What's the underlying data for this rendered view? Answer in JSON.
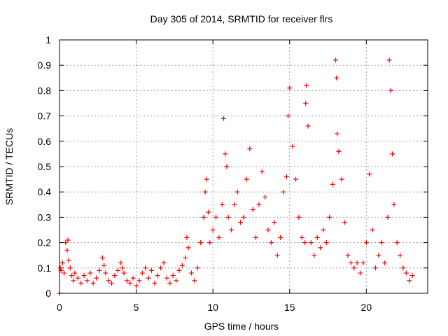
{
  "chart_data": {
    "type": "scatter",
    "title": "Day 305 of 2014, SRMTID for receiver flrs",
    "xlabel": "GPS time / hours",
    "ylabel": "SRMTID / TECUs",
    "xlim": [
      0,
      24
    ],
    "ylim": [
      0,
      1
    ],
    "xticks": [
      0,
      5,
      10,
      15,
      20
    ],
    "xtick_labels": [
      "0",
      "5",
      "10",
      "15",
      "20"
    ],
    "yticks": [
      0,
      0.1,
      0.2,
      0.3,
      0.4,
      0.5,
      0.6,
      0.7,
      0.8,
      0.9,
      1
    ],
    "ytick_labels": [
      "0",
      "0.1",
      "0.2",
      "0.3",
      "0.4",
      "0.5",
      "0.6",
      "0.7",
      "0.8",
      "0.9",
      "1"
    ],
    "grid": true,
    "marker": "+",
    "marker_color": "#ff0000",
    "series": [
      {
        "name": "flrs",
        "x": [
          0.0,
          0.05,
          0.1,
          0.2,
          0.3,
          0.4,
          0.5,
          0.55,
          0.6,
          0.7,
          0.8,
          0.9,
          1.0,
          1.2,
          1.4,
          1.6,
          1.8,
          2.0,
          2.2,
          2.4,
          2.6,
          2.8,
          2.9,
          3.0,
          3.2,
          3.4,
          3.6,
          3.8,
          4.0,
          4.1,
          4.2,
          4.4,
          4.6,
          4.8,
          5.0,
          5.2,
          5.4,
          5.6,
          5.8,
          6.0,
          6.2,
          6.4,
          6.6,
          6.8,
          7.0,
          7.2,
          7.4,
          7.6,
          7.8,
          8.0,
          8.2,
          8.3,
          8.4,
          8.6,
          8.8,
          9.0,
          9.2,
          9.4,
          9.5,
          9.6,
          9.7,
          9.8,
          10.0,
          10.2,
          10.4,
          10.6,
          10.7,
          10.8,
          10.9,
          11.0,
          11.2,
          11.4,
          11.6,
          11.8,
          12.0,
          12.2,
          12.4,
          12.6,
          12.8,
          13.0,
          13.2,
          13.4,
          13.6,
          13.8,
          14.0,
          14.2,
          14.4,
          14.6,
          14.8,
          14.9,
          15.0,
          15.2,
          15.4,
          15.6,
          15.8,
          16.0,
          16.05,
          16.1,
          16.2,
          16.4,
          16.6,
          16.8,
          17.0,
          17.2,
          17.4,
          17.6,
          17.8,
          18.0,
          18.05,
          18.1,
          18.2,
          18.4,
          18.6,
          18.8,
          19.0,
          19.2,
          19.4,
          19.6,
          19.8,
          20.0,
          20.2,
          20.4,
          20.6,
          20.8,
          21.0,
          21.2,
          21.4,
          21.5,
          21.6,
          21.7,
          21.8,
          22.0,
          22.2,
          22.4,
          22.6,
          22.8,
          23.0
        ],
        "y": [
          0.0,
          0.1,
          0.09,
          0.12,
          0.08,
          0.2,
          0.17,
          0.21,
          0.13,
          0.1,
          0.07,
          0.05,
          0.08,
          0.06,
          0.04,
          0.07,
          0.05,
          0.08,
          0.04,
          0.06,
          0.09,
          0.14,
          0.11,
          0.08,
          0.05,
          0.04,
          0.07,
          0.09,
          0.12,
          0.1,
          0.08,
          0.05,
          0.04,
          0.06,
          0.03,
          0.05,
          0.08,
          0.1,
          0.06,
          0.09,
          0.04,
          0.07,
          0.1,
          0.12,
          0.06,
          0.04,
          0.07,
          0.05,
          0.09,
          0.11,
          0.14,
          0.22,
          0.18,
          0.08,
          0.05,
          0.1,
          0.2,
          0.3,
          0.4,
          0.45,
          0.32,
          0.2,
          0.25,
          0.3,
          0.22,
          0.35,
          0.69,
          0.55,
          0.5,
          0.3,
          0.25,
          0.35,
          0.4,
          0.28,
          0.3,
          0.45,
          0.57,
          0.33,
          0.22,
          0.35,
          0.48,
          0.38,
          0.25,
          0.2,
          0.28,
          0.15,
          0.22,
          0.4,
          0.46,
          0.7,
          0.81,
          0.58,
          0.45,
          0.3,
          0.22,
          0.2,
          0.75,
          0.82,
          0.66,
          0.2,
          0.15,
          0.22,
          0.18,
          0.25,
          0.2,
          0.3,
          0.43,
          0.92,
          0.85,
          0.63,
          0.56,
          0.45,
          0.28,
          0.15,
          0.12,
          0.1,
          0.12,
          0.08,
          0.12,
          0.2,
          0.47,
          0.25,
          0.1,
          0.15,
          0.2,
          0.12,
          0.3,
          0.92,
          0.8,
          0.55,
          0.35,
          0.2,
          0.15,
          0.1,
          0.08,
          0.05,
          0.07
        ]
      }
    ]
  }
}
